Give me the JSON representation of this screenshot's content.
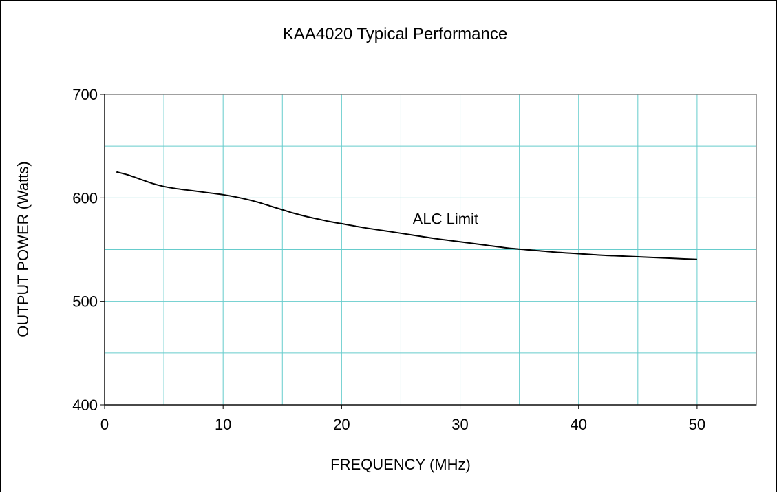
{
  "chart_data": {
    "type": "line",
    "title": "KAA4020 Typical Performance",
    "xlabel": "FREQUENCY (MHz)",
    "ylabel": "OUTPUT POWER (Watts)",
    "xlim": [
      0,
      55
    ],
    "ylim": [
      400,
      700
    ],
    "xticks": [
      0,
      10,
      20,
      30,
      40,
      50
    ],
    "yticks": [
      400,
      500,
      600,
      700
    ],
    "xgrid_step": 5,
    "ygrid_step": 50,
    "grid": true,
    "grid_color": "#66cccc",
    "line_color": "#000000",
    "series": [
      {
        "name": "ALC Limit",
        "x": [
          1,
          2,
          3,
          4,
          5,
          6,
          7,
          8,
          9,
          10,
          11,
          12,
          13,
          14,
          15,
          16,
          17,
          18,
          19,
          20,
          22,
          24,
          26,
          28,
          30,
          32,
          34,
          36,
          38,
          40,
          42,
          44,
          46,
          48,
          50
        ],
        "y": [
          625,
          622,
          618,
          614,
          611,
          609,
          607.5,
          606,
          604.5,
          603,
          601,
          598.5,
          595.5,
          592,
          588.5,
          585,
          582,
          579.5,
          577,
          575,
          571,
          567.5,
          564,
          560.5,
          557.5,
          554.5,
          551.5,
          549.5,
          547.5,
          546,
          544.5,
          543.5,
          542.5,
          541.5,
          540.5
        ]
      }
    ],
    "annotations": [
      {
        "text": "ALC Limit",
        "x": 26,
        "y": 580
      }
    ]
  }
}
